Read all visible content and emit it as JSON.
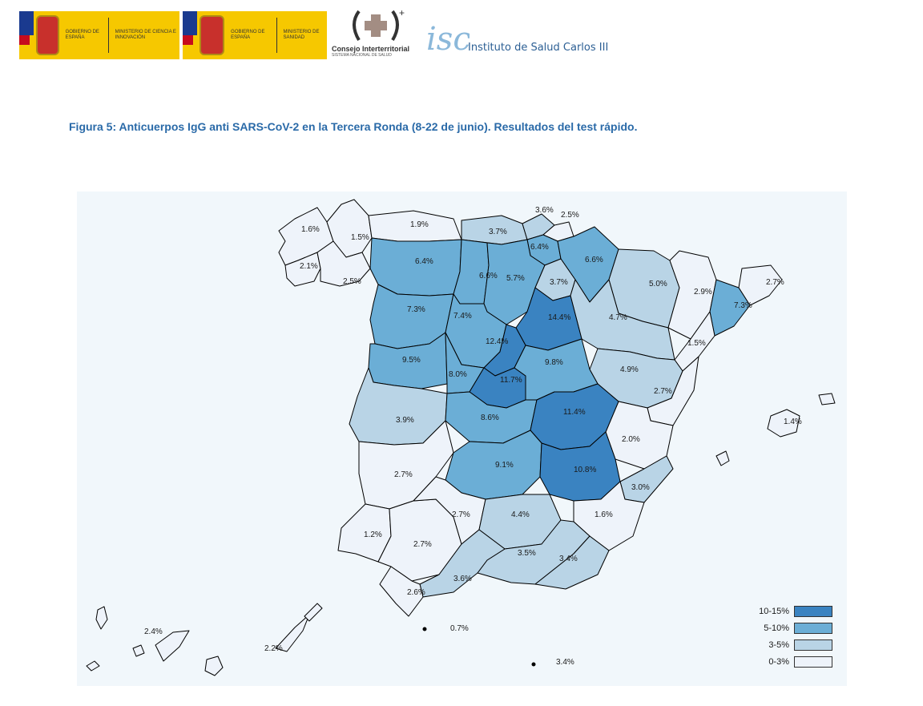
{
  "header": {
    "logos": [
      {
        "gov": "Gobierno de España",
        "ministry": "Ministerio de Ciencia e Innovación"
      },
      {
        "gov": "Gobierno de España",
        "ministry": "Ministerio de Sanidad"
      }
    ],
    "consejo": {
      "name": "Consejo Interterritorial",
      "sub": "SISTEMA NACIONAL DE SALUD"
    },
    "isciii": {
      "name": "Instituto de Salud Carlos III"
    }
  },
  "caption": "Figura 5: Anticuerpos IgG anti SARS-CoV-2 en la Tercera Ronda (8-22 de junio). Resultados del test rápido.",
  "colors": {
    "c4": "#3a83c1",
    "c3": "#6baed6",
    "c2": "#b9d4e6",
    "c1": "#eef3fa",
    "border": "#000000",
    "background": "#f1f7fb"
  },
  "legend": [
    {
      "label": "10-15%",
      "color": "#3a83c1"
    },
    {
      "label": "5-10%",
      "color": "#6baed6"
    },
    {
      "label": "3-5%",
      "color": "#b9d4e6"
    },
    {
      "label": "0-3%",
      "color": "#eef3fa"
    }
  ],
  "regions": [
    {
      "value": "1.6%",
      "class": "0-3%"
    },
    {
      "value": "1.5%",
      "class": "0-3%"
    },
    {
      "value": "1.9%",
      "class": "0-3%"
    },
    {
      "value": "3.6%",
      "class": "3-5%"
    },
    {
      "value": "2.5%",
      "class": "0-3%"
    },
    {
      "value": "3.7%",
      "class": "3-5%"
    },
    {
      "value": "6.4%",
      "class": "5-10%"
    },
    {
      "value": "6.4%",
      "class": "5-10%"
    },
    {
      "value": "6.6%",
      "class": "5-10%"
    },
    {
      "value": "2.1%",
      "class": "0-3%"
    },
    {
      "value": "6.6%",
      "class": "5-10%"
    },
    {
      "value": "5.7%",
      "class": "5-10%"
    },
    {
      "value": "3.7%",
      "class": "3-5%"
    },
    {
      "value": "5.0%",
      "class": "3-5%"
    },
    {
      "value": "2.9%",
      "class": "0-3%"
    },
    {
      "value": "2.7%",
      "class": "0-3%"
    },
    {
      "value": "2.5%",
      "class": "0-3%"
    },
    {
      "value": "7.3%",
      "class": "5-10%"
    },
    {
      "value": "7.4%",
      "class": "5-10%"
    },
    {
      "value": "14.4%",
      "class": "10-15%"
    },
    {
      "value": "4.7%",
      "class": "3-5%"
    },
    {
      "value": "7.3%",
      "class": "5-10%"
    },
    {
      "value": "12.4%",
      "class": "10-15%"
    },
    {
      "value": "1.5%",
      "class": "0-3%"
    },
    {
      "value": "9.5%",
      "class": "5-10%"
    },
    {
      "value": "8.0%",
      "class": "5-10%"
    },
    {
      "value": "9.8%",
      "class": "5-10%"
    },
    {
      "value": "4.9%",
      "class": "3-5%"
    },
    {
      "value": "11.7%",
      "class": "10-15%"
    },
    {
      "value": "2.7%",
      "class": "0-3%"
    },
    {
      "value": "3.9%",
      "class": "3-5%"
    },
    {
      "value": "8.6%",
      "class": "5-10%"
    },
    {
      "value": "11.4%",
      "class": "10-15%"
    },
    {
      "value": "1.4%",
      "class": "0-3%"
    },
    {
      "value": "2.0%",
      "class": "0-3%"
    },
    {
      "value": "9.1%",
      "class": "5-10%"
    },
    {
      "value": "2.7%",
      "class": "0-3%"
    },
    {
      "value": "10.8%",
      "class": "10-15%"
    },
    {
      "value": "3.0%",
      "class": "3-5%"
    },
    {
      "value": "2.7%",
      "class": "0-3%"
    },
    {
      "value": "4.4%",
      "class": "3-5%"
    },
    {
      "value": "1.6%",
      "class": "0-3%"
    },
    {
      "value": "1.2%",
      "class": "0-3%"
    },
    {
      "value": "2.7%",
      "class": "0-3%"
    },
    {
      "value": "3.5%",
      "class": "3-5%"
    },
    {
      "value": "3.4%",
      "class": "3-5%"
    },
    {
      "value": "3.6%",
      "class": "3-5%"
    },
    {
      "value": "2.6%",
      "class": "0-3%"
    },
    {
      "value": "0.7%",
      "class": "0-3%"
    },
    {
      "value": "2.4%",
      "class": "0-3%"
    },
    {
      "value": "2.2%",
      "class": "0-3%"
    },
    {
      "value": "3.4%",
      "class": "3-5%"
    }
  ]
}
